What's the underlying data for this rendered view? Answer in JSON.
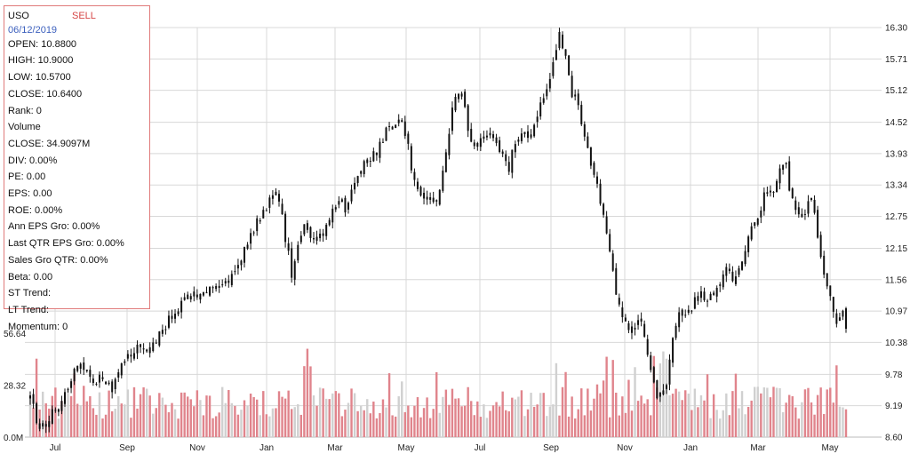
{
  "info": {
    "symbol": "USO",
    "signal": "SELL",
    "date": "06/12/2019",
    "rows": [
      "OPEN: 10.8800",
      "HIGH: 10.9000",
      "LOW: 10.5700",
      "CLOSE: 10.6400",
      "Rank: 0",
      "Volume",
      "CLOSE: 34.9097M",
      "DIV: 0.00%",
      "PE: 0.00",
      "EPS: 0.00",
      "ROE: 0.00%",
      "Ann EPS Gro: 0.00%",
      "Last QTR EPS Gro: 0.00%",
      "Sales Gro QTR: 0.00%",
      "Beta: 0.00",
      "ST Trend:",
      "LT Trend:",
      "Momentum: 0"
    ]
  },
  "colors": {
    "candle": "#111111",
    "volume_down": "#e0848c",
    "volume_up": "#d0d0d0",
    "grid": "#d8d8d8",
    "box_border": "#e07a7a"
  },
  "chart_data": {
    "type": "candlestick-with-volume",
    "price_axis": {
      "ticks": [
        "16.30",
        "15.71",
        "15.12",
        "14.52",
        "13.93",
        "13.34",
        "12.75",
        "12.15",
        "11.56",
        "10.97",
        "10.38",
        "9.78",
        "9.19",
        "8.60"
      ],
      "range": [
        8.6,
        16.3
      ]
    },
    "volume_axis": {
      "ticks": [
        "56.64",
        "28.32",
        "0.0M"
      ],
      "range": [
        0,
        56.64
      ]
    },
    "x_ticks": [
      "Jul",
      "Sep",
      "Nov",
      "Jan",
      "Mar",
      "May",
      "Jul",
      "Sep",
      "Nov",
      "Jan",
      "Mar",
      "May"
    ],
    "close_path": [
      [
        0,
        9.35
      ],
      [
        3,
        8.9
      ],
      [
        6,
        8.75
      ],
      [
        10,
        9.1
      ],
      [
        14,
        9.3
      ],
      [
        18,
        9.6
      ],
      [
        22,
        10.05
      ],
      [
        25,
        9.8
      ],
      [
        28,
        9.6
      ],
      [
        32,
        9.7
      ],
      [
        36,
        9.5
      ],
      [
        40,
        9.9
      ],
      [
        44,
        10.1
      ],
      [
        48,
        10.3
      ],
      [
        52,
        10.15
      ],
      [
        56,
        10.4
      ],
      [
        60,
        10.7
      ],
      [
        64,
        10.9
      ],
      [
        68,
        11.1
      ],
      [
        72,
        11.3
      ],
      [
        76,
        11.35
      ],
      [
        80,
        11.45
      ],
      [
        84,
        11.5
      ],
      [
        88,
        11.6
      ],
      [
        92,
        11.8
      ],
      [
        96,
        12.2
      ],
      [
        100,
        12.6
      ],
      [
        104,
        12.9
      ],
      [
        107,
        13.15
      ],
      [
        110,
        13.2
      ],
      [
        113,
        12.4
      ],
      [
        116,
        11.7
      ],
      [
        119,
        12.3
      ],
      [
        122,
        12.65
      ],
      [
        125,
        12.4
      ],
      [
        128,
        12.3
      ],
      [
        131,
        12.5
      ],
      [
        134,
        12.8
      ],
      [
        137,
        13.1
      ],
      [
        140,
        12.85
      ],
      [
        143,
        13.2
      ],
      [
        146,
        13.6
      ],
      [
        149,
        13.8
      ],
      [
        152,
        13.85
      ],
      [
        155,
        14.1
      ],
      [
        158,
        14.35
      ],
      [
        161,
        14.5
      ],
      [
        164,
        14.6
      ],
      [
        167,
        14.3
      ],
      [
        170,
        13.4
      ],
      [
        173,
        13.1
      ],
      [
        176,
        13.15
      ],
      [
        179,
        13.0
      ],
      [
        182,
        13.3
      ],
      [
        185,
        14.2
      ],
      [
        188,
        14.9
      ],
      [
        191,
        15.05
      ],
      [
        194,
        14.5
      ],
      [
        197,
        14.05
      ],
      [
        200,
        14.2
      ],
      [
        203,
        14.35
      ],
      [
        206,
        14.1
      ],
      [
        209,
        14.0
      ],
      [
        212,
        13.6
      ],
      [
        215,
        14.1
      ],
      [
        218,
        14.4
      ],
      [
        221,
        14.3
      ],
      [
        224,
        14.5
      ],
      [
        227,
        15.0
      ],
      [
        230,
        15.2
      ],
      [
        233,
        15.9
      ],
      [
        235,
        16.15
      ],
      [
        237,
        15.85
      ],
      [
        240,
        15.1
      ],
      [
        243,
        14.9
      ],
      [
        246,
        14.3
      ],
      [
        249,
        13.7
      ],
      [
        252,
        13.2
      ],
      [
        255,
        12.6
      ],
      [
        258,
        11.8
      ],
      [
        261,
        11.1
      ],
      [
        264,
        10.8
      ],
      [
        267,
        10.6
      ],
      [
        270,
        10.9
      ],
      [
        273,
        10.3
      ],
      [
        276,
        9.7
      ],
      [
        279,
        9.3
      ],
      [
        282,
        9.6
      ],
      [
        285,
        10.4
      ],
      [
        288,
        10.9
      ],
      [
        291,
        11.0
      ],
      [
        294,
        11.1
      ],
      [
        297,
        11.3
      ],
      [
        300,
        11.1
      ],
      [
        303,
        11.3
      ],
      [
        306,
        11.5
      ],
      [
        309,
        11.75
      ],
      [
        312,
        11.6
      ],
      [
        315,
        11.9
      ],
      [
        318,
        12.2
      ],
      [
        321,
        12.6
      ],
      [
        324,
        12.9
      ],
      [
        327,
        13.25
      ],
      [
        330,
        13.3
      ],
      [
        333,
        13.65
      ],
      [
        335,
        13.8
      ],
      [
        337,
        13.2
      ],
      [
        340,
        12.95
      ],
      [
        343,
        12.8
      ],
      [
        346,
        13.05
      ],
      [
        348,
        12.85
      ],
      [
        350,
        12.2
      ],
      [
        352,
        11.8
      ],
      [
        354,
        11.4
      ],
      [
        356,
        10.95
      ],
      [
        358,
        10.8
      ],
      [
        360,
        11.05
      ],
      [
        362,
        10.64
      ]
    ]
  }
}
